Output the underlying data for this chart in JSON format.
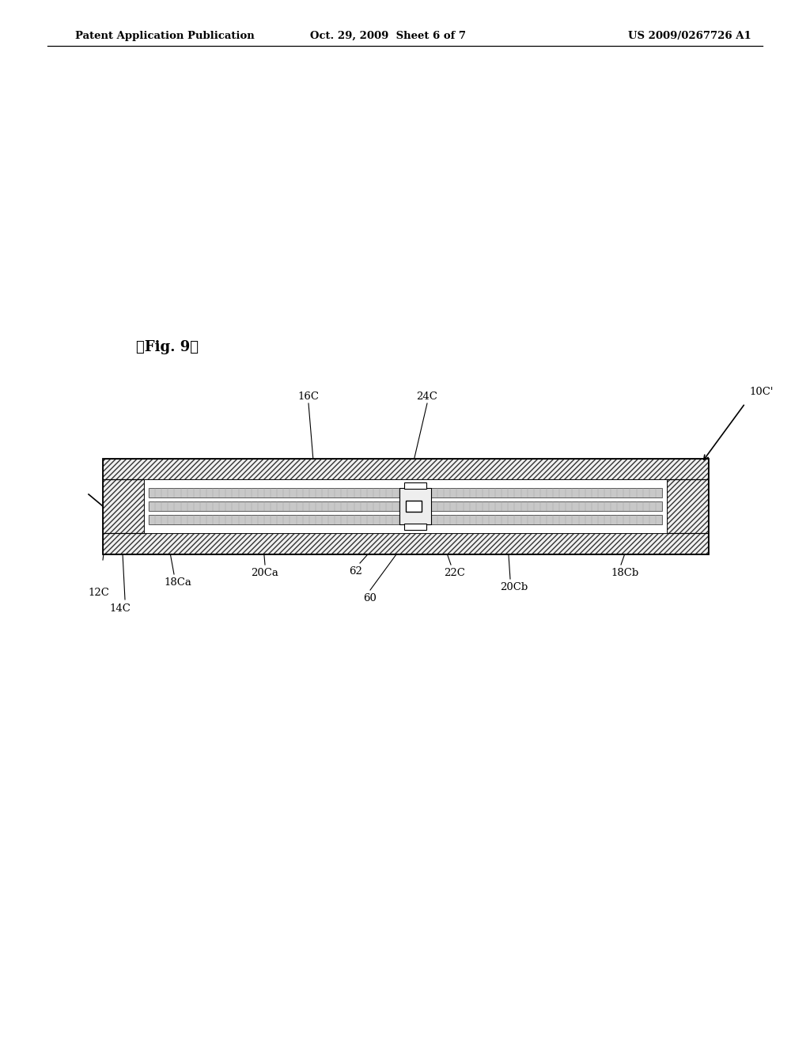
{
  "bg_color": "#ffffff",
  "header_left": "Patent Application Publication",
  "header_mid": "Oct. 29, 2009  Sheet 6 of 7",
  "header_right": "US 2009/0267726 A1",
  "fig_label": "【Fig. 9】",
  "labels": {
    "10C_prime": "10C'",
    "16C": "16C",
    "24C": "24C",
    "12C": "12C",
    "14C": "14C",
    "18Ca": "18Ca",
    "18Cb": "18Cb",
    "20Ca": "20Ca",
    "20Cb": "20Cb",
    "22C": "22C",
    "60": "60",
    "62": "62"
  }
}
